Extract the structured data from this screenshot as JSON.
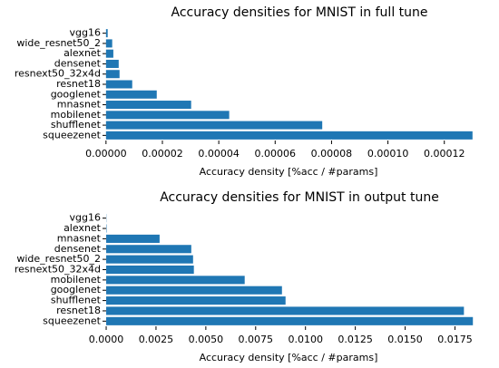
{
  "chart_data": [
    {
      "type": "barh",
      "title": "Accuracy densities for MNIST in full tune",
      "xlabel": "Accuracy density [%acc / #params]",
      "categories": [
        "vgg16",
        "wide_resnet50_2",
        "alexnet",
        "densenet",
        "resnext50_32x4d",
        "resnet18",
        "googlenet",
        "mnasnet",
        "mobilenet",
        "shufflenet",
        "squeezenet"
      ],
      "values": [
        6e-07,
        2.2e-06,
        2.6e-06,
        4.5e-06,
        4.8e-06,
        9.3e-06,
        1.8e-05,
        3.02e-05,
        4.37e-05,
        7.67e-05,
        0.00013
      ],
      "color": "#1f77b4",
      "xlim": [
        -2.2e-06,
        0.0001365
      ],
      "xticks": [
        {
          "value": 0,
          "label": "0.00000"
        },
        {
          "value": 2e-05,
          "label": "0.00002"
        },
        {
          "value": 4e-05,
          "label": "0.00004"
        },
        {
          "value": 6e-05,
          "label": "0.00006"
        },
        {
          "value": 8e-05,
          "label": "0.00008"
        },
        {
          "value": 0.0001,
          "label": "0.00010"
        },
        {
          "value": 0.00012,
          "label": "0.00012"
        }
      ]
    },
    {
      "type": "barh",
      "title": "Accuracy densities for MNIST in output tune",
      "xlabel": "Accuracy density [%acc / #params]",
      "categories": [
        "vgg16",
        "alexnet",
        "mnasnet",
        "densenet",
        "wide_resnet50_2",
        "resnext50_32x4d",
        "mobilenet",
        "googlenet",
        "shufflenet",
        "resnet18",
        "squeezenet"
      ],
      "values": [
        1e-05,
        2e-05,
        0.00268,
        0.00427,
        0.00436,
        0.0044,
        0.00695,
        0.00882,
        0.009,
        0.01795,
        0.0184
      ],
      "color": "#1f77b4",
      "xlim": [
        -0.00032,
        0.0193
      ],
      "xticks": [
        {
          "value": 0,
          "label": "0.0000"
        },
        {
          "value": 0.0025,
          "label": "0.0025"
        },
        {
          "value": 0.005,
          "label": "0.0050"
        },
        {
          "value": 0.0075,
          "label": "0.0075"
        },
        {
          "value": 0.01,
          "label": "0.0100"
        },
        {
          "value": 0.0125,
          "label": "0.0125"
        },
        {
          "value": 0.015,
          "label": "0.0150"
        },
        {
          "value": 0.0175,
          "label": "0.0175"
        }
      ]
    }
  ]
}
